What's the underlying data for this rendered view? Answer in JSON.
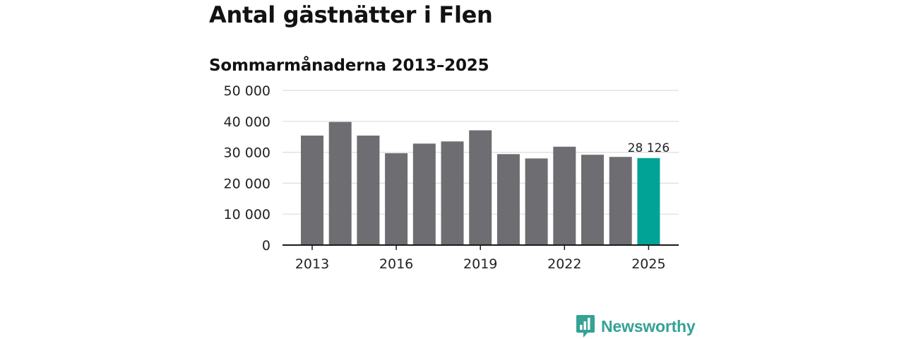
{
  "title": "Antal gästnätter i Flen",
  "subtitle": "Sommarmånaderna 2013–2025",
  "brand": {
    "name": "Newsworthy",
    "color": "#35a294",
    "icon": "newsworthy-logo-icon"
  },
  "colors": {
    "bar": "#6e6d72",
    "highlight": "#00a396",
    "grid": "#dddddd",
    "axis": "#1a1a1a"
  },
  "chart_data": {
    "type": "bar",
    "title": "Antal gästnätter i Flen",
    "subtitle": "Sommarmånaderna 2013–2025",
    "categories": [
      "2013",
      "2014",
      "2015",
      "2016",
      "2017",
      "2018",
      "2019",
      "2020",
      "2021",
      "2022",
      "2023",
      "2024",
      "2025"
    ],
    "values": [
      35400,
      39800,
      35400,
      29700,
      32800,
      33500,
      37100,
      29400,
      28000,
      31800,
      29200,
      28500,
      28126
    ],
    "highlight_index": 12,
    "data_labels": [
      {
        "index": 12,
        "text": "28 126"
      }
    ],
    "x_tick_labels": [
      "2013",
      "2016",
      "2019",
      "2022",
      "2025"
    ],
    "y_ticks": [
      0,
      10000,
      20000,
      30000,
      40000,
      50000
    ],
    "y_tick_labels": [
      "0",
      "10 000",
      "20 000",
      "30 000",
      "40 000",
      "50 000"
    ],
    "ylim": [
      0,
      50000
    ],
    "xlabel": "",
    "ylabel": "",
    "grid": "horizontal",
    "legend": "none"
  }
}
